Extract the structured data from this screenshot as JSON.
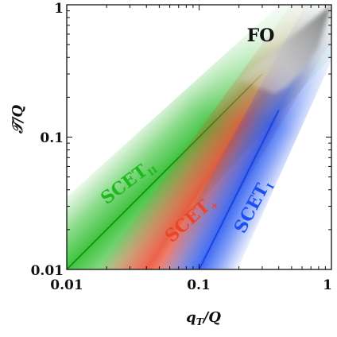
{
  "axes": {
    "x_title_main": "q",
    "x_title_sub": "T",
    "x_title_rest": "/Q",
    "y_title": "𝒯/Q",
    "x_ticks": [
      "0.01",
      "0.1",
      "1"
    ],
    "y_ticks": [
      "0.01",
      "0.1",
      "1"
    ],
    "scale": "log",
    "x_range": [
      0.01,
      1
    ],
    "y_range": [
      0.01,
      1
    ]
  },
  "regions": [
    {
      "key": "scet2",
      "main": "SCET",
      "sub": "II",
      "color": "#1db91d",
      "line_color": "#138a13",
      "slope": 1,
      "at_x": 0.01,
      "at_y": 0.01
    },
    {
      "key": "scetplus",
      "main": "SCET",
      "sub": "+",
      "color": "#e8462a",
      "line_color": "#e8462a",
      "slope": 1.5,
      "at_x": 0.04,
      "at_y": 0.01
    },
    {
      "key": "scet1",
      "main": "SCET",
      "sub": "I",
      "color": "#1a4ff0",
      "line_color": "#1a3ad8",
      "slope": 2,
      "at_x": 0.1,
      "at_y": 0.01
    }
  ],
  "fo_label": "FO",
  "colors": {
    "fo_gray": "#8a8a8a",
    "axis": "#111111",
    "background": "#ffffff"
  }
}
